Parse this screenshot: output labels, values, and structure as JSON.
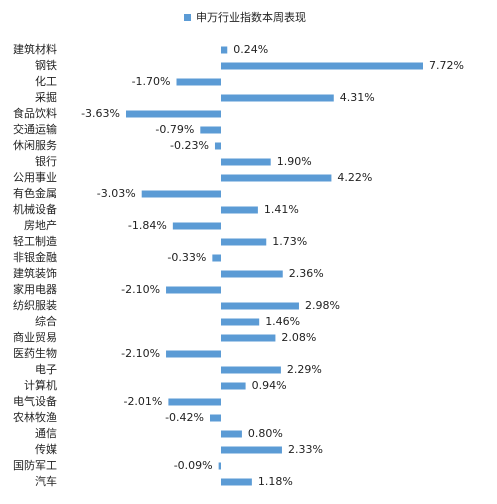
{
  "chart_data": {
    "type": "bar",
    "orientation": "horizontal",
    "legend": "top",
    "categories": [
      "建筑材料",
      "钢铁",
      "化工",
      "采掘",
      "食品饮料",
      "交通运输",
      "休闲服务",
      "银行",
      "公用事业",
      "有色金属",
      "机械设备",
      "房地产",
      "轻工制造",
      "非银金融",
      "建筑装饰",
      "家用电器",
      "纺织服装",
      "综合",
      "商业贸易",
      "医药生物",
      "电子",
      "计算机",
      "电气设备",
      "农林牧渔",
      "通信",
      "传媒",
      "国防军工",
      "汽车"
    ],
    "series": [
      {
        "name": "申万行业指数本周表现",
        "color": "#5b9bd5",
        "values": [
          0.24,
          7.72,
          -1.7,
          4.31,
          -3.63,
          -0.79,
          -0.23,
          1.9,
          4.22,
          -3.03,
          1.41,
          -1.84,
          1.73,
          -0.33,
          2.36,
          -2.1,
          2.98,
          1.46,
          2.08,
          -2.1,
          2.29,
          0.94,
          -2.01,
          -0.42,
          0.8,
          2.33,
          -0.09,
          1.18
        ],
        "value_labels": [
          "0.24%",
          "7.72%",
          "-1.70%",
          "4.31%",
          "-3.63%",
          "-0.79%",
          "-0.23%",
          "1.90%",
          "4.22%",
          "-3.03%",
          "1.41%",
          "-1.84%",
          "1.73%",
          "-0.33%",
          "2.36%",
          "-2.10%",
          "2.98%",
          "1.46%",
          "2.08%",
          "-2.10%",
          "2.29%",
          "0.94%",
          "-2.01%",
          "-0.42%",
          "0.80%",
          "2.33%",
          "-0.09%",
          "1.18%"
        ]
      }
    ]
  }
}
